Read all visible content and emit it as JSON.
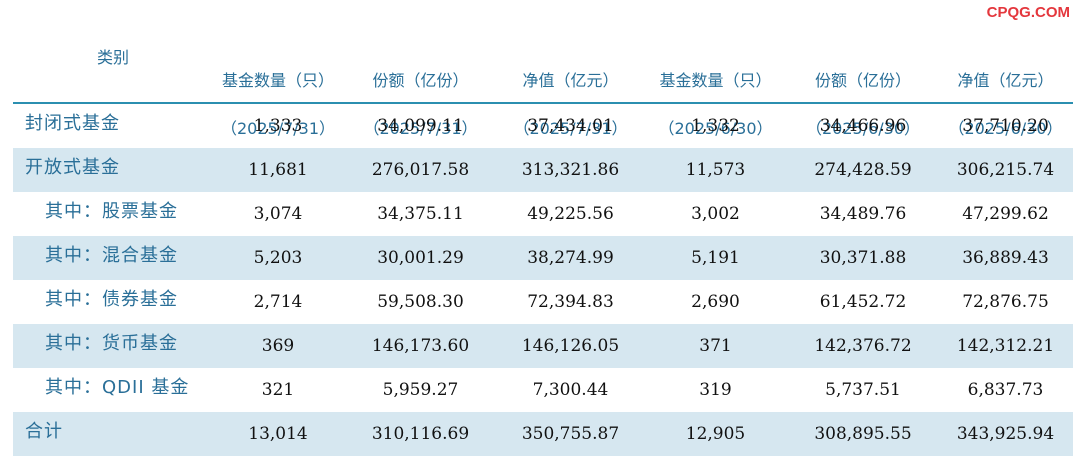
{
  "header": {
    "category_label": "类别",
    "columns": [
      {
        "title": "基金数量（只）",
        "date": "（2025/7/31）"
      },
      {
        "title": "份额（亿份）",
        "date": "（2025/7/31）"
      },
      {
        "title": "净值（亿元）",
        "date": "（2025/7/31）"
      },
      {
        "title": "基金数量（只）",
        "date": "（2025/6/30）"
      },
      {
        "title": "份额（亿份）",
        "date": "（2025/6/30）"
      },
      {
        "title": "净值（亿元）",
        "date": "（2025/6/30）"
      }
    ]
  },
  "rows": [
    {
      "label": "封闭式基金",
      "values": [
        "1,333",
        "34,099.11",
        "37,434.01",
        "1,332",
        "34,466.96",
        "37,710.20"
      ]
    },
    {
      "label": "开放式基金",
      "values": [
        "11,681",
        "276,017.58",
        "313,321.86",
        "11,573",
        "274,428.59",
        "306,215.74"
      ]
    },
    {
      "label": "其中：股票基金",
      "values": [
        "3,074",
        "34,375.11",
        "49,225.56",
        "3,002",
        "34,489.76",
        "47,299.62"
      ]
    },
    {
      "label": "其中：混合基金",
      "values": [
        "5,203",
        "30,001.29",
        "38,274.99",
        "5,191",
        "30,371.88",
        "36,889.43"
      ]
    },
    {
      "label": "其中：债券基金",
      "values": [
        "2,714",
        "59,508.30",
        "72,394.83",
        "2,690",
        "61,452.72",
        "72,876.75"
      ]
    },
    {
      "label": "其中：货币基金",
      "values": [
        "369",
        "146,173.60",
        "146,126.05",
        "371",
        "142,376.72",
        "142,312.21"
      ]
    },
    {
      "label": "其中：QDII 基金",
      "values": [
        "321",
        "5,959.27",
        "7,300.44",
        "319",
        "5,737.51",
        "6,837.73"
      ]
    },
    {
      "label": "合计",
      "values": [
        "13,014",
        "310,116.69",
        "350,755.87",
        "12,905",
        "308,895.55",
        "343,925.94"
      ]
    }
  ],
  "watermark": "CPQG.COM",
  "colors": {
    "header_text": "#2a6f98",
    "rule": "#2b8fb0",
    "shade": "#d6e7f0",
    "watermark": "#e4373d"
  }
}
